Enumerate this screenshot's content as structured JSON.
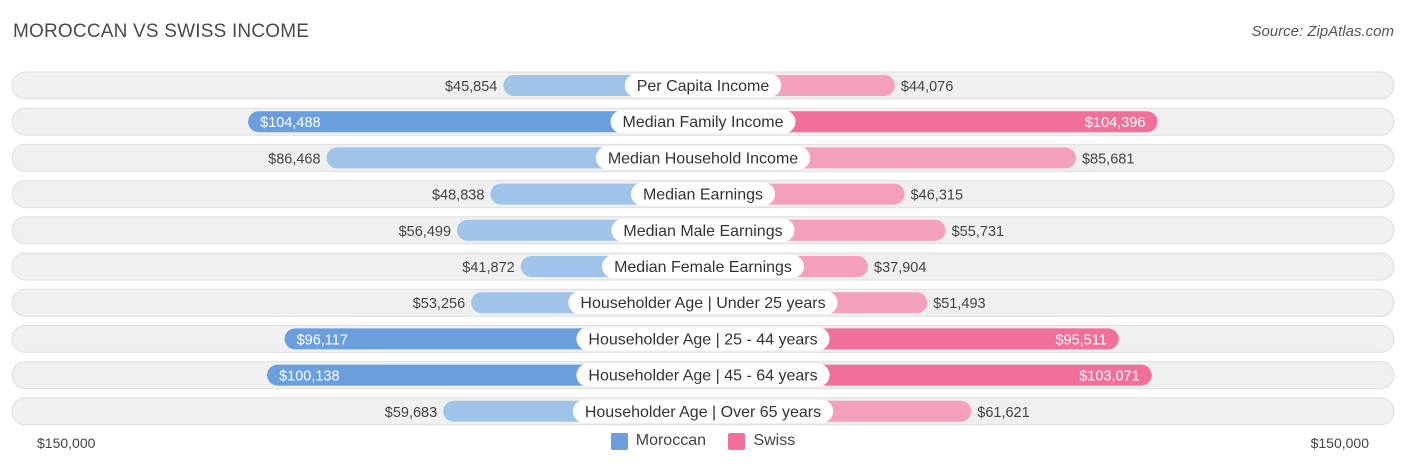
{
  "header": {
    "title": "MOROCCAN VS SWISS INCOME",
    "source": "Source: ZipAtlas.com"
  },
  "colors": {
    "moroccan_light": "#a0c3ea",
    "moroccan_dark": "#6a9edc",
    "swiss_light": "#f5a0bb",
    "swiss_dark": "#f07099",
    "row_bg": "#f0f0f0",
    "row_border": "#dedede"
  },
  "chart_data": {
    "type": "bar",
    "orientation": "diverging-horizontal",
    "max": 150000,
    "axis_left_label": "$150,000",
    "axis_right_label": "$150,000",
    "legend_position": "bottom-center",
    "categories": [
      "Per Capita Income",
      "Median Family Income",
      "Median Household Income",
      "Median Earnings",
      "Median Male Earnings",
      "Median Female Earnings",
      "Householder Age | Under 25 years",
      "Householder Age | 25 - 44 years",
      "Householder Age | 45 - 64 years",
      "Householder Age | Over 65 years"
    ],
    "series": [
      {
        "name": "Moroccan",
        "side": "left",
        "values": [
          45854,
          104488,
          86468,
          48838,
          56499,
          41872,
          53256,
          96117,
          100138,
          59683
        ],
        "labels": [
          "$45,854",
          "$104,488",
          "$86,468",
          "$48,838",
          "$56,499",
          "$41,872",
          "$53,256",
          "$96,117",
          "$100,138",
          "$59,683"
        ]
      },
      {
        "name": "Swiss",
        "side": "right",
        "values": [
          44076,
          104396,
          85681,
          46315,
          55731,
          37904,
          51493,
          95511,
          103071,
          61621
        ],
        "labels": [
          "$44,076",
          "$104,396",
          "$85,681",
          "$46,315",
          "$55,731",
          "$37,904",
          "$51,493",
          "$95,511",
          "$103,071",
          "$61,621"
        ]
      }
    ]
  }
}
